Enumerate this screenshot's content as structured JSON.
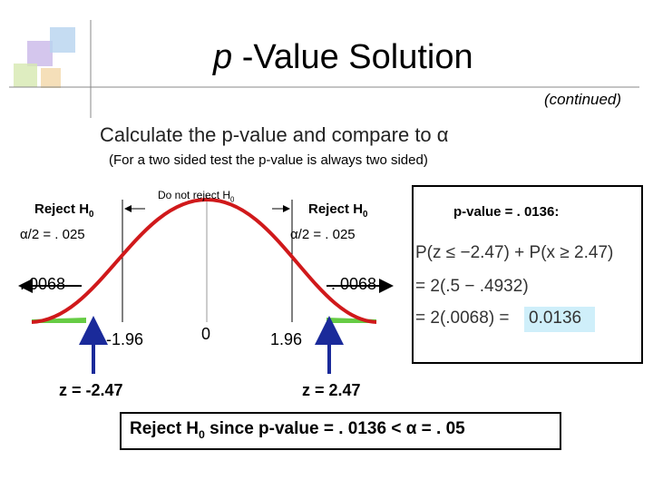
{
  "title": {
    "italic": "p",
    "rest": " -Value Solution"
  },
  "continued": "(continued)",
  "heading": "Calculate the p-value and compare to α",
  "subheading": "(For a two sided test the p-value is always two sided)",
  "diagram": {
    "reject_left": {
      "text": "Reject H",
      "sub": "0"
    },
    "do_not_reject": {
      "text": "Do not reject H",
      "sub": "0"
    },
    "reject_right": {
      "text": "Reject H",
      "sub": "0"
    },
    "alpha_left": "α/2 = . 025",
    "alpha_right": "α/2 = . 025",
    "area_left": ". 0068",
    "area_right": ". 0068",
    "z_crit_left": "-1.96",
    "center": "0",
    "z_crit_right": "1.96",
    "z_left": "z = -2.47",
    "z_right": "z = 2.47"
  },
  "box": {
    "title": "p-value = . 0136:",
    "line1": "P(z ≤ −2.47) + P(x ≥ 2.47)",
    "line2": "= 2(.5 − .4932)",
    "line3": "= 2(.0068) =",
    "result": "0.0136"
  },
  "conclusion": {
    "text": "Reject H",
    "sub": "0",
    "rest": " since p-value = . 0136 < α = . 05"
  }
}
